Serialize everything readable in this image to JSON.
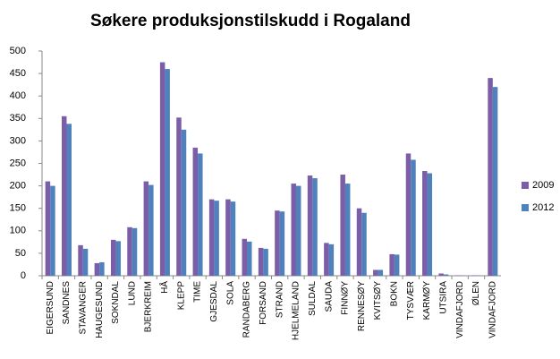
{
  "chart_data": {
    "type": "bar",
    "title": "Søkere produksjonstilskudd i Rogaland",
    "categories": [
      "EIGERSUND",
      "SANDNES",
      "STAVANGER",
      "HAUGESUND",
      "SOKNDAL",
      "LUND",
      "BJERKREIM",
      "HÅ",
      "KLEPP",
      "TIME",
      "GJESDAL",
      "SOLA",
      "RANDABERG",
      "FORSAND",
      "STRAND",
      "HJELMELAND",
      "SULDAL",
      "SAUDA",
      "FINNØY",
      "RENNESØY",
      "KVITSØY",
      "BOKN",
      "TYSVÆR",
      "KARMØY",
      "UTSIRA",
      "VINDAFJORD",
      "ØLEN",
      "VINDAFJORD"
    ],
    "series": [
      {
        "name": "2009",
        "color": "#7b5ea7",
        "values": [
          210,
          355,
          68,
          28,
          80,
          108,
          210,
          475,
          352,
          285,
          170,
          170,
          82,
          62,
          145,
          205,
          223,
          73,
          225,
          150,
          13,
          48,
          272,
          233,
          5,
          1,
          1,
          440
        ]
      },
      {
        "name": "2012",
        "color": "#4f81bd",
        "values": [
          200,
          338,
          60,
          30,
          77,
          106,
          202,
          460,
          325,
          272,
          167,
          165,
          76,
          60,
          143,
          200,
          217,
          70,
          205,
          140,
          13,
          47,
          258,
          228,
          3,
          1,
          1,
          420
        ]
      }
    ],
    "ylim": [
      0,
      500
    ],
    "yticks": [
      0,
      50,
      100,
      150,
      200,
      250,
      300,
      350,
      400,
      450,
      500
    ],
    "grid": false,
    "legend": "right"
  }
}
